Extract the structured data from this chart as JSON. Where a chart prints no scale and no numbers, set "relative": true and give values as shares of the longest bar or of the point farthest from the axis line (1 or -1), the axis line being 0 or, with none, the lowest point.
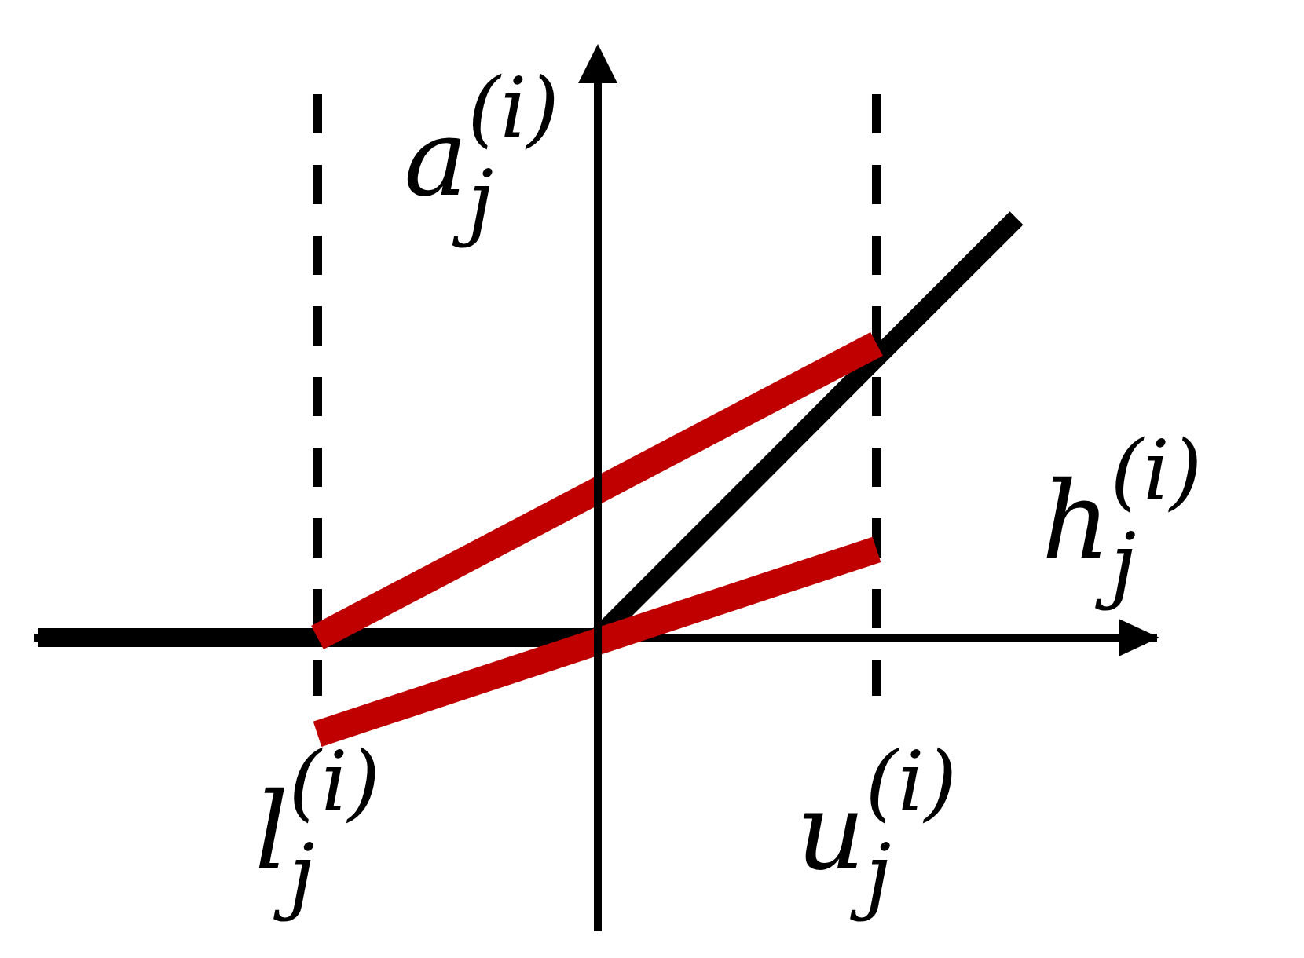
{
  "chart_data": {
    "type": "line",
    "relative": true,
    "xlabel": "h$_{j}$$^{(i)}$",
    "ylabel": "a$_{j}$$^{(i)}$",
    "categories": [
      null,
      null,
      "l$_{j}$$^{(i)}$",
      null,
      null,
      null,
      "u$_{j}$$^{(i)}$",
      null,
      null
    ],
    "series": [
      {
        "color": "#000000",
        "values": [
          0,
          0,
          0,
          0,
          0,
          0.333,
          0.667,
          1,
          null
        ]
      },
      {
        "color": "#c00000",
        "values": [
          null,
          null,
          0,
          0.175,
          0.35,
          0.525,
          0.7,
          null,
          null
        ]
      },
      {
        "color": "#c00000",
        "values": [
          null,
          null,
          -0.23,
          -0.12,
          -0.01,
          0.1,
          0.21,
          null,
          null
        ]
      }
    ],
    "ref_lines": [
      {
        "axis": "x",
        "value": "l$_{j}$$^{(i)}$",
        "line_style": "dashed",
        "color": "#000000"
      },
      {
        "axis": "x",
        "value": "u$_{j}$$^{(i)}$",
        "line_style": "dashed",
        "color": "#000000"
      }
    ],
    "marker": "none",
    "line_style": "solid",
    "legend": false,
    "grid": false
  }
}
